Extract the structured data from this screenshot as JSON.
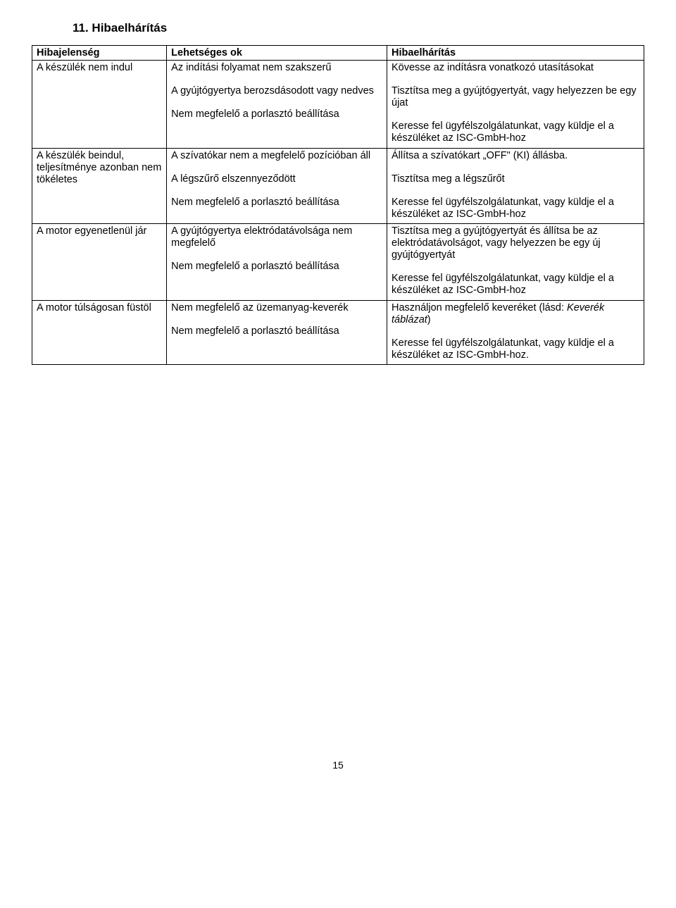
{
  "section_title": "11. Hibaelhárítás",
  "headers": {
    "col1": "Hibajelenség",
    "col2": "Lehetséges ok",
    "col3": "Hibaelhárítás"
  },
  "rows": [
    {
      "symptom": "A készülék nem indul",
      "causes": [
        "Az indítási folyamat nem szakszerű",
        "A gyújtógyertya berozsdásodott vagy nedves",
        "Nem megfelelő a porlasztó beállítása"
      ],
      "fixes": [
        "Kövesse az indításra vonatkozó utasításokat",
        "Tisztítsa meg a gyújtógyertyát, vagy helyezzen be egy újat",
        "Keresse fel ügyfélszolgálatunkat, vagy küldje el a készüléket az ISC-GmbH-hoz"
      ]
    },
    {
      "symptom": "A készülék beindul, teljesítménye azonban nem tökéletes",
      "causes": [
        "A szívatókar nem a megfelelő pozícióban áll",
        "A légszűrő elszennyeződött",
        "Nem megfelelő a porlasztó beállítása"
      ],
      "fixes": [
        "Állítsa a szívatókart „OFF\" (KI) állásba.",
        "Tisztítsa meg a légszűrőt",
        "Keresse fel ügyfélszolgálatunkat, vagy küldje el a készüléket az ISC-GmbH-hoz"
      ]
    },
    {
      "symptom": "A motor egyenetlenül jár",
      "causes": [
        "A gyújtógyertya elektródatávolsága nem megfelelő",
        "Nem megfelelő a porlasztó beállítása"
      ],
      "fixes": [
        "Tisztítsa meg a gyújtógyertyát és állítsa be az elektródatávolságot, vagy helyezzen be egy új gyújtógyertyát",
        "Keresse fel ügyfélszolgálatunkat, vagy küldje el a készüléket az ISC-GmbH-hoz"
      ]
    },
    {
      "symptom": "A motor túlságosan füstöl",
      "causes": [
        "Nem megfelelő az üzemanyag-keverék",
        "Nem megfelelő a porlasztó beállítása"
      ],
      "fixes": [
        {
          "pre": "Használjon megfelelő keveréket (lásd: ",
          "italic": "Keverék táblázat",
          "post": ")"
        },
        "Keresse fel ügyfélszolgálatunkat, vagy küldje el a készüléket az ISC-GmbH-hoz."
      ]
    }
  ],
  "page_number": "15"
}
